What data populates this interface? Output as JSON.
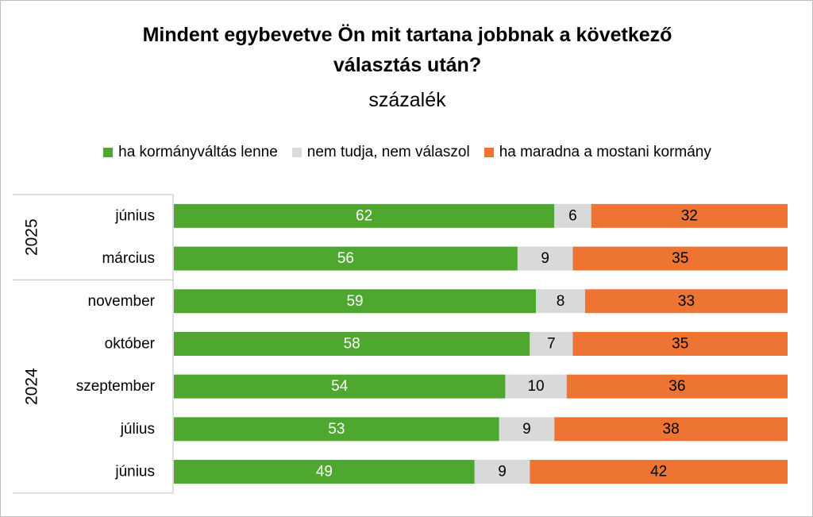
{
  "chart_data": {
    "type": "bar",
    "orientation": "horizontal",
    "stacked": true,
    "title_line1": "Mindent egybevetve Ön mit tartana jobbnak a következő",
    "title_line2": "választás után?",
    "subtitle": "százalék",
    "legend_position": "top",
    "groups": [
      {
        "label": "2025",
        "categories": [
          "június",
          "március"
        ]
      },
      {
        "label": "2024",
        "categories": [
          "november",
          "október",
          "szeptember",
          "július",
          "június"
        ]
      }
    ],
    "categories": [
      "június",
      "március",
      "november",
      "október",
      "szeptember",
      "július",
      "június"
    ],
    "series": [
      {
        "name": "ha kormányváltás lenne",
        "color": "#4ea72e",
        "label_color": "#ffffff",
        "values": [
          62,
          56,
          59,
          58,
          54,
          53,
          49
        ]
      },
      {
        "name": "nem tudja, nem válaszol",
        "color": "#d9d9d9",
        "label_color": "#000000",
        "values": [
          6,
          9,
          8,
          7,
          10,
          9,
          9
        ]
      },
      {
        "name": "ha maradna a mostani kormány",
        "color": "#ed7432",
        "label_color": "#000000",
        "values": [
          32,
          35,
          33,
          35,
          36,
          38,
          42
        ]
      }
    ],
    "xlim": [
      0,
      100
    ],
    "grid": false
  }
}
